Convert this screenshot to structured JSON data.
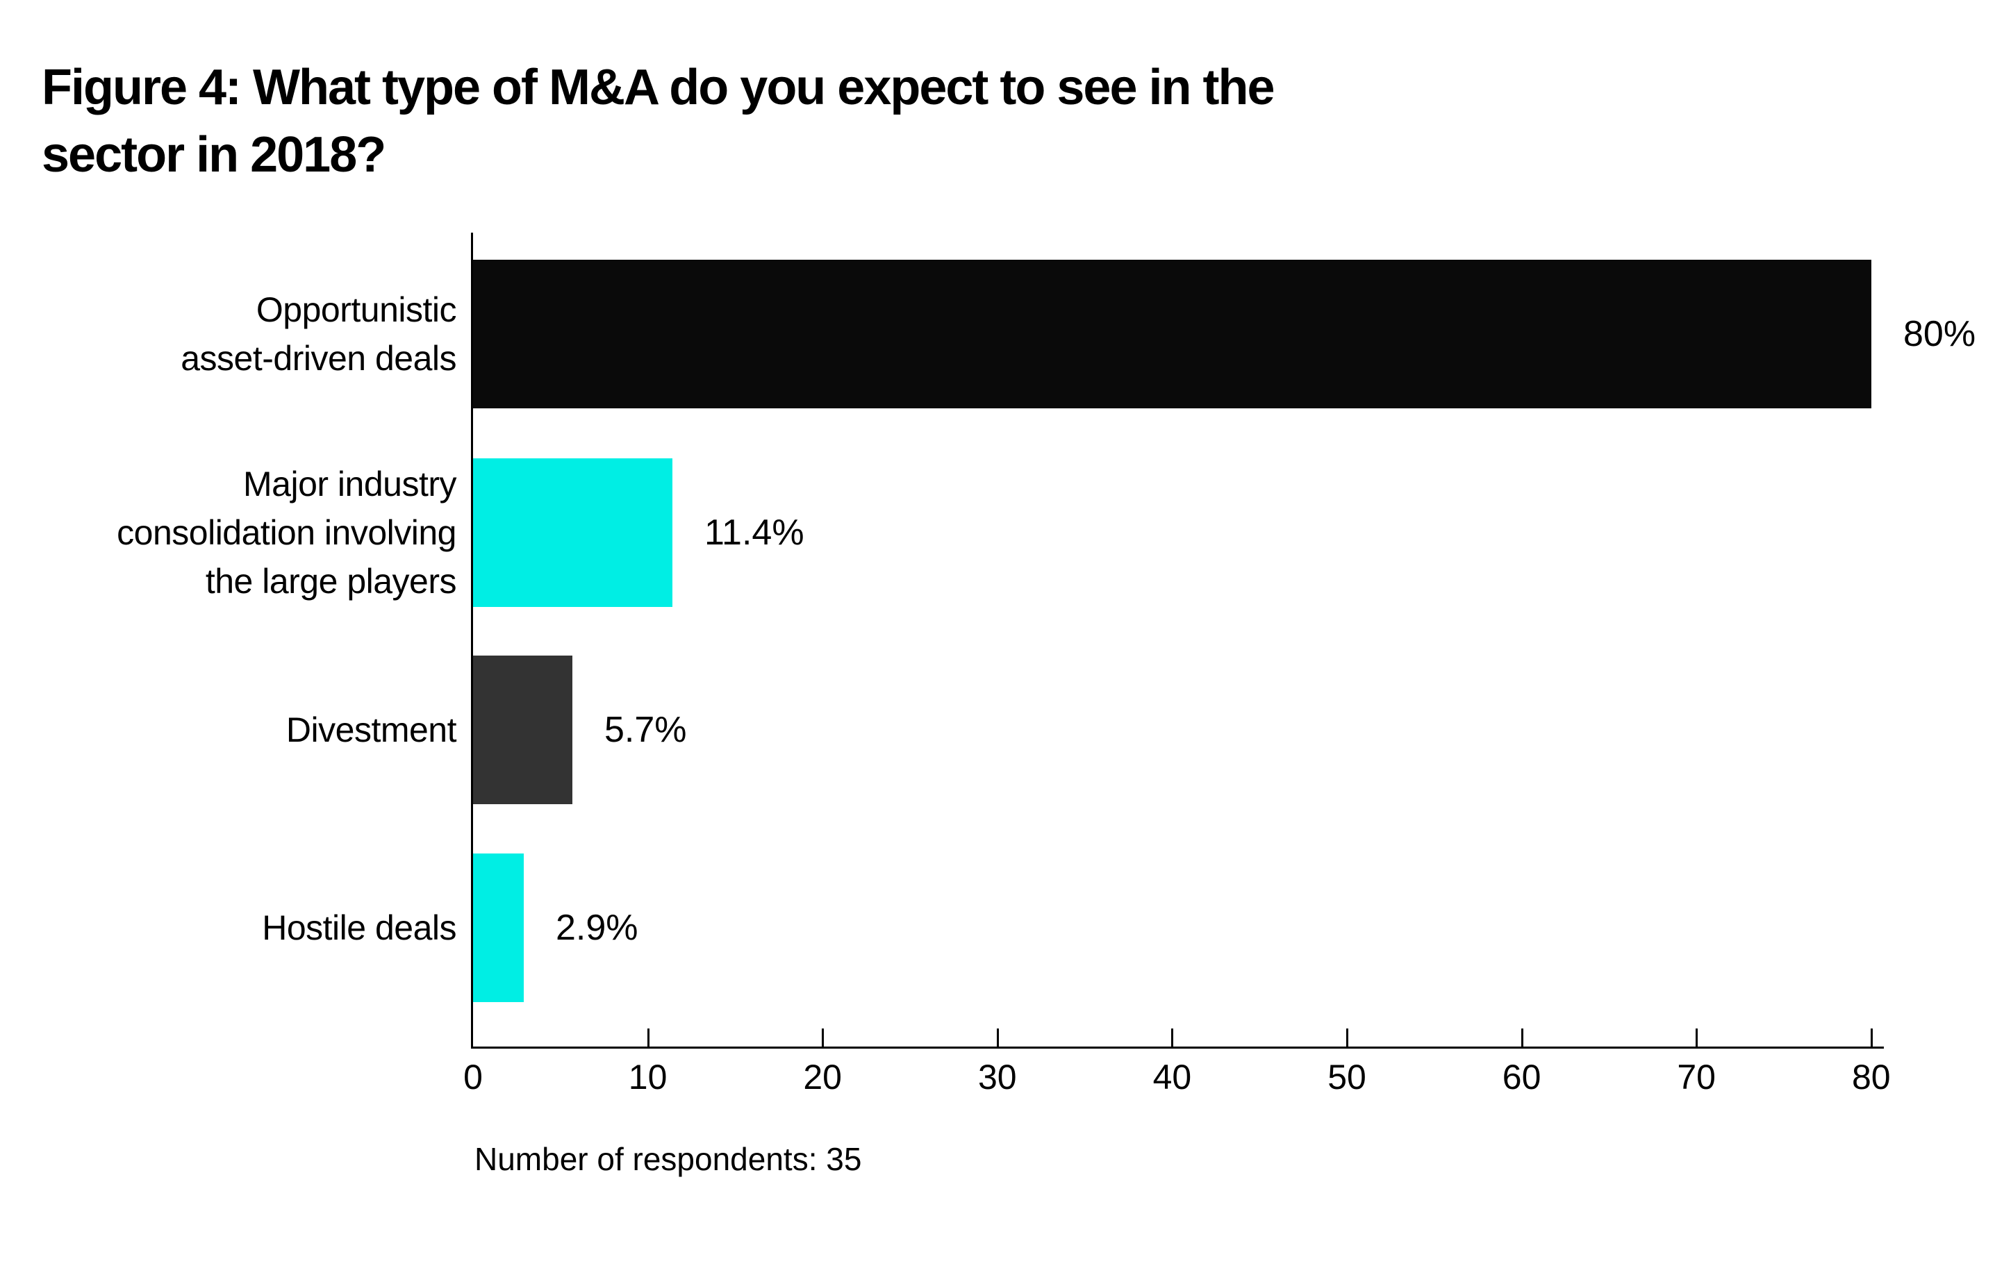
{
  "figure": {
    "title_line1": "Figure 4: What type of M&A do you expect to see in the",
    "title_line2": "sector in 2018?",
    "footnote": "Number of respondents: 35"
  },
  "chart_data": {
    "type": "bar",
    "orientation": "horizontal",
    "title": "Figure 4: What type of M&A do you expect to see in the sector in 2018?",
    "categories": [
      "Opportunistic asset-driven deals",
      "Major industry consolidation involving the large players",
      "Divestment",
      "Hostile deals"
    ],
    "category_label_lines": [
      [
        "Opportunistic",
        "asset-driven deals"
      ],
      [
        "Major industry",
        "consolidation involving",
        "the large players"
      ],
      [
        "Divestment"
      ],
      [
        "Hostile deals"
      ]
    ],
    "values": [
      80,
      11.4,
      5.7,
      2.9
    ],
    "value_labels": [
      "80%",
      "11.4%",
      "5.7%",
      "2.9%"
    ],
    "bar_colors": [
      "#0a0a0a",
      "#00eee4",
      "#333333",
      "#00eee4"
    ],
    "x_ticks": [
      0,
      10,
      20,
      30,
      40,
      50,
      60,
      70,
      80
    ],
    "x_tick_labels": [
      "0",
      "10",
      "20",
      "30",
      "40",
      "50",
      "60",
      "70",
      "80"
    ],
    "xlim": [
      0,
      80
    ],
    "xlabel": "",
    "ylabel": "",
    "grid": false,
    "legend": false,
    "footnote": "Number of respondents: 35",
    "colors": {
      "background": "#ffffff",
      "text": "#000000",
      "axis": "#000000",
      "bar_black": "#0a0a0a",
      "bar_cyan": "#00eee4",
      "bar_gray": "#333333"
    }
  }
}
